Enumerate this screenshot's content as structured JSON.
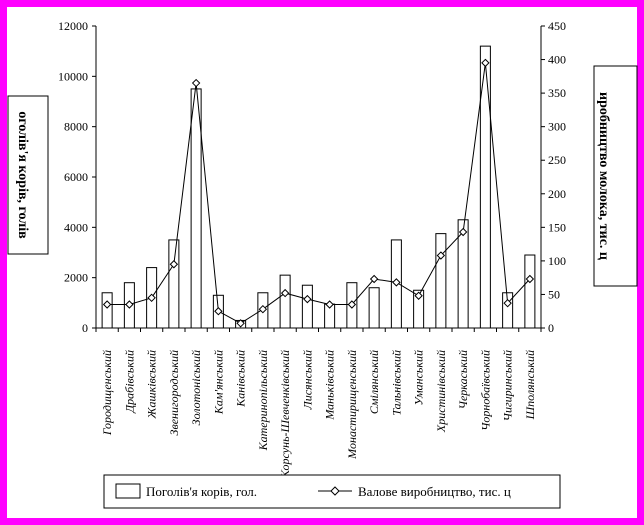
{
  "chart_data": {
    "type": "bar",
    "categories": [
      "Городищенський",
      "Драбівський",
      "Жашківський",
      "Звенигородський",
      "Золотоніський",
      "Кам'янський",
      "Канівський",
      "Катеринопільський",
      "Корсунь-Шевченківський",
      "Лисянський",
      "Маньківський",
      "Монастирищенський",
      "Смілянський",
      "Тальнівський",
      "Уманський",
      "Христинівський",
      "Черкаський",
      "Чорнобаївський",
      "Чигиринський",
      "Шполянський"
    ],
    "series": [
      {
        "name": "Поголів'я корів, гол.",
        "kind": "bar",
        "axis": "left",
        "values": [
          1400,
          1800,
          2400,
          3500,
          9500,
          1300,
          300,
          1400,
          2100,
          1700,
          950,
          1800,
          1600,
          3500,
          1500,
          3750,
          4300,
          11200,
          1400,
          2900
        ]
      },
      {
        "name": "Валове виробництво, тис. ц",
        "kind": "line",
        "axis": "right",
        "marker": "diamond",
        "values": [
          35,
          35,
          45,
          95,
          365,
          25,
          7,
          28,
          52,
          43,
          35,
          35,
          73,
          68,
          48,
          108,
          143,
          395,
          37,
          73
        ]
      }
    ],
    "ylabel": "оголів'я корів, голів",
    "y2label": "иробництво молока, тис. ц",
    "ylim": [
      0,
      12000
    ],
    "y2lim": [
      0,
      450
    ],
    "yticks": [
      0,
      2000,
      4000,
      6000,
      8000,
      10000,
      12000
    ],
    "y2ticks": [
      0,
      50,
      100,
      150,
      200,
      250,
      300,
      350,
      400,
      450
    ],
    "legend_position": "bottom",
    "grid": false
  }
}
